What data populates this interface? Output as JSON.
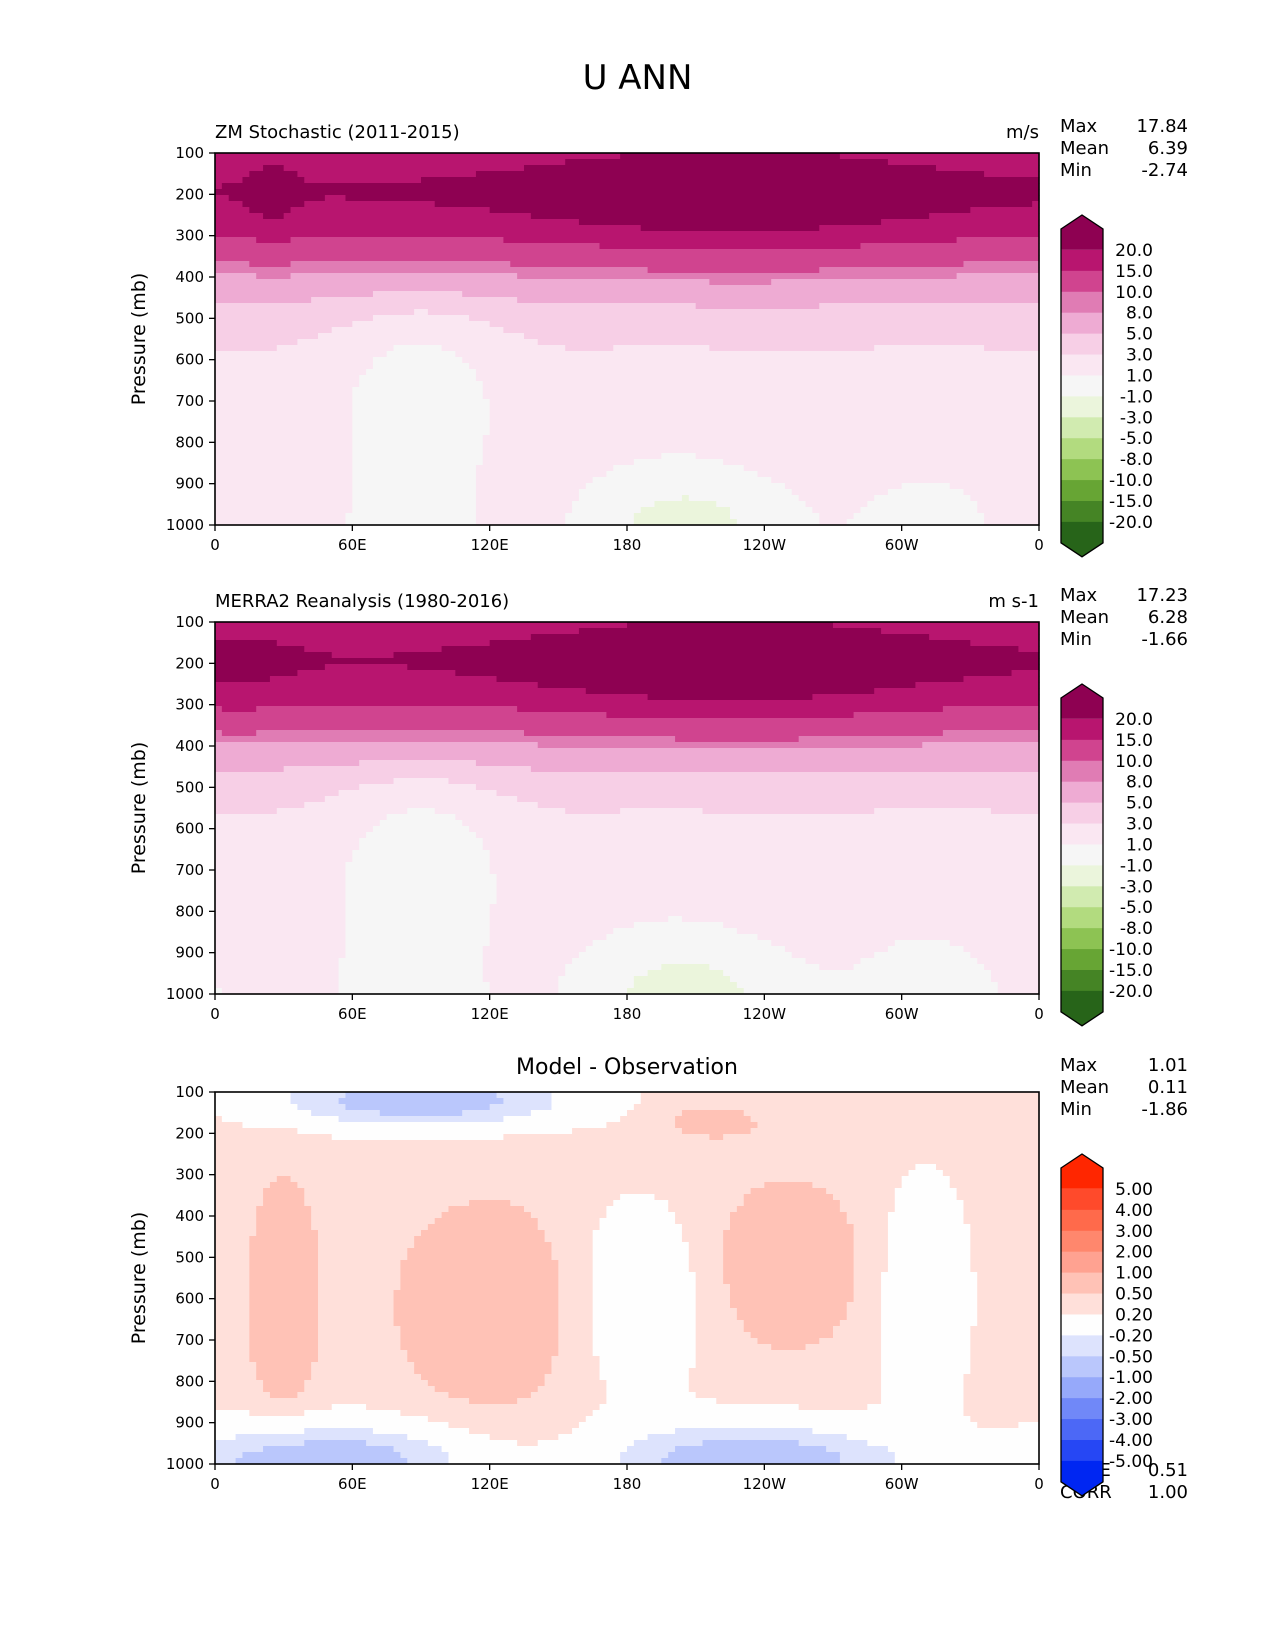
{
  "figure": {
    "title": "U ANN"
  },
  "chart_data": [
    {
      "type": "heatmap",
      "subtype": "filled-contour",
      "title_left": "ZM Stochastic (2011-2015)",
      "title_right": "m/s",
      "ylabel": "Pressure (mb)",
      "xlabel": "",
      "x_ticks": [
        "0",
        "60E",
        "120E",
        "180",
        "120W",
        "60W",
        "0"
      ],
      "x_tick_values": [
        0,
        60,
        120,
        180,
        240,
        300,
        360
      ],
      "xlim": [
        0,
        360
      ],
      "y_ticks": [
        "100",
        "200",
        "300",
        "400",
        "500",
        "600",
        "700",
        "800",
        "900",
        "1000"
      ],
      "y_tick_values": [
        100,
        200,
        300,
        400,
        500,
        600,
        700,
        800,
        900,
        1000
      ],
      "ylim": [
        1000,
        100
      ],
      "y_inverted": true,
      "stats": {
        "Max": "17.84",
        "Mean": "6.39",
        "Min": "-2.74"
      },
      "colorbar": {
        "levels": [
          "20.0",
          "15.0",
          "10.0",
          "8.0",
          "5.0",
          "3.0",
          "1.0",
          "-1.0",
          "-3.0",
          "-5.0",
          "-8.0",
          "-10.0",
          "-15.0",
          "-20.0"
        ],
        "colors": [
          "#8e0152",
          "#b8156f",
          "#d0448f",
          "#e07cb4",
          "#eeabd3",
          "#f7cfe6",
          "#fae7f2",
          "#f6f6f6",
          "#ebf5dc",
          "#d1ebb0",
          "#b2db7f",
          "#8dc353",
          "#67a534",
          "#458425",
          "#276419"
        ],
        "extend": "both"
      },
      "field_description": "Zonal-mean style cross-section: strongest westerlies (15-20 m/s) near 200 mb, especially 150E-90W; winds weaken downward to near-zero/slightly negative below 850 mb over 180-60W."
    },
    {
      "type": "heatmap",
      "subtype": "filled-contour",
      "title_left": "MERRA2 Reanalysis (1980-2016)",
      "title_right": "m s-1",
      "ylabel": "Pressure (mb)",
      "xlabel": "",
      "x_ticks": [
        "0",
        "60E",
        "120E",
        "180",
        "120W",
        "60W",
        "0"
      ],
      "x_tick_values": [
        0,
        60,
        120,
        180,
        240,
        300,
        360
      ],
      "xlim": [
        0,
        360
      ],
      "y_ticks": [
        "100",
        "200",
        "300",
        "400",
        "500",
        "600",
        "700",
        "800",
        "900",
        "1000"
      ],
      "y_tick_values": [
        100,
        200,
        300,
        400,
        500,
        600,
        700,
        800,
        900,
        1000
      ],
      "ylim": [
        1000,
        100
      ],
      "y_inverted": true,
      "stats": {
        "Max": "17.23",
        "Mean": "6.28",
        "Min": "-1.66"
      },
      "colorbar": {
        "levels": [
          "20.0",
          "15.0",
          "10.0",
          "8.0",
          "5.0",
          "3.0",
          "1.0",
          "-1.0",
          "-3.0",
          "-5.0",
          "-8.0",
          "-10.0",
          "-15.0",
          "-20.0"
        ],
        "colors": [
          "#8e0152",
          "#b8156f",
          "#d0448f",
          "#e07cb4",
          "#eeabd3",
          "#f7cfe6",
          "#fae7f2",
          "#f6f6f6",
          "#ebf5dc",
          "#d1ebb0",
          "#b2db7f",
          "#8dc353",
          "#67a534",
          "#458425",
          "#276419"
        ],
        "extend": "both"
      },
      "field_description": "Similar structure to model: jet maximum near 200 mb across 120E-0, weaker westerlies near surface."
    },
    {
      "type": "heatmap",
      "subtype": "filled-contour",
      "title_center": "Model - Observation",
      "ylabel": "Pressure (mb)",
      "xlabel": "",
      "x_ticks": [
        "0",
        "60E",
        "120E",
        "180",
        "120W",
        "60W",
        "0"
      ],
      "x_tick_values": [
        0,
        60,
        120,
        180,
        240,
        300,
        360
      ],
      "xlim": [
        0,
        360
      ],
      "y_ticks": [
        "100",
        "200",
        "300",
        "400",
        "500",
        "600",
        "700",
        "800",
        "900",
        "1000"
      ],
      "y_tick_values": [
        100,
        200,
        300,
        400,
        500,
        600,
        700,
        800,
        900,
        1000
      ],
      "ylim": [
        1000,
        100
      ],
      "y_inverted": true,
      "stats": {
        "Max": "1.01",
        "Mean": "0.11",
        "Min": "-1.86"
      },
      "metrics": {
        "RMSE": "0.51",
        "CORR": "1.00"
      },
      "colorbar": {
        "levels": [
          "5.00",
          "4.00",
          "3.00",
          "2.00",
          "1.00",
          "0.50",
          "0.20",
          "-0.20",
          "-0.50",
          "-1.00",
          "-2.00",
          "-3.00",
          "-4.00",
          "-5.00"
        ],
        "colors": [
          "#ff2600",
          "#ff4a2b",
          "#ff6a4b",
          "#ff876d",
          "#ffa291",
          "#ffc2b6",
          "#ffe0da",
          "#fefefe",
          "#dde3fd",
          "#bac7fc",
          "#96a9fa",
          "#7088f8",
          "#4c68f6",
          "#2647f4",
          "#0026f2"
        ],
        "extend": "both"
      },
      "field_description": "Differences mostly within +/-1 m/s: positive (0.5-1) bands in mid troposphere near 30E, 80-150E and 230-280E; negative (-0.5 to -2) near 100-150 mb over 0-150E and near surface 900-1000 mb."
    }
  ]
}
